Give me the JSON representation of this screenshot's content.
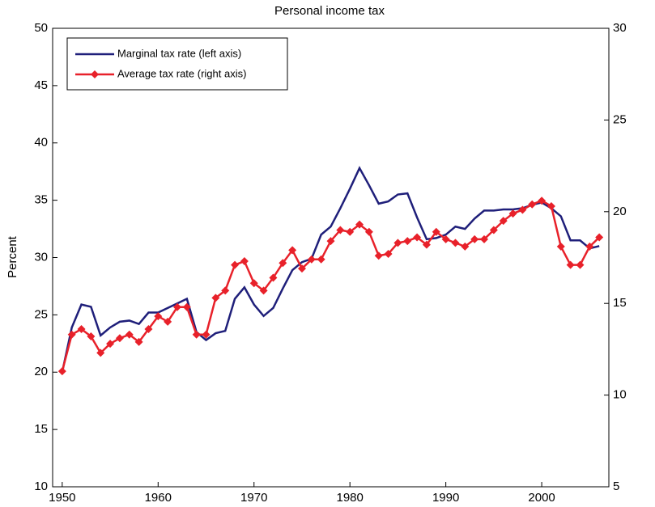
{
  "chart_data": {
    "type": "line",
    "title": "Personal income tax",
    "y_label": "Percent",
    "x": [
      1950,
      1951,
      1952,
      1953,
      1954,
      1955,
      1956,
      1957,
      1958,
      1959,
      1960,
      1961,
      1962,
      1963,
      1964,
      1965,
      1966,
      1967,
      1968,
      1969,
      1970,
      1971,
      1972,
      1973,
      1974,
      1975,
      1976,
      1977,
      1978,
      1979,
      1980,
      1981,
      1982,
      1983,
      1984,
      1985,
      1986,
      1987,
      1988,
      1989,
      1990,
      1991,
      1992,
      1993,
      1994,
      1995,
      1996,
      1997,
      1998,
      1999,
      2000,
      2001,
      2002,
      2003,
      2004,
      2005,
      2006
    ],
    "xlim": [
      1949,
      2007
    ],
    "xticks": [
      1950,
      1960,
      1970,
      1980,
      1990,
      2000
    ],
    "ylim": [
      10,
      50
    ],
    "yticks": [
      10,
      15,
      20,
      25,
      30,
      35,
      40,
      45,
      50
    ],
    "y2lim": [
      5,
      30
    ],
    "y2ticks": [
      5,
      10,
      15,
      20,
      25,
      30
    ],
    "legend": "upper left",
    "series": [
      {
        "name": "Marginal tax rate (left axis)",
        "color": "#1f1f7a",
        "marker": "none",
        "values": [
          20.0,
          23.9,
          25.9,
          25.7,
          23.2,
          23.9,
          24.4,
          24.5,
          24.2,
          25.2,
          25.2,
          25.6,
          26.0,
          26.4,
          23.5,
          22.8,
          23.4,
          23.6,
          26.4,
          27.4,
          25.9,
          24.9,
          25.6,
          27.3,
          28.9,
          29.6,
          29.9,
          32.0,
          32.7,
          34.3,
          36.0,
          37.8,
          36.3,
          34.7,
          34.9,
          35.5,
          35.6,
          33.5,
          31.6,
          31.7,
          32.0,
          32.7,
          32.5,
          33.4,
          34.1,
          34.1,
          34.2,
          34.2,
          34.3,
          34.6,
          34.8,
          34.3,
          33.6,
          31.5,
          31.5,
          30.8,
          31.0
        ]
      },
      {
        "name": "Average tax rate (right axis)",
        "color": "#e8212a",
        "marker": "diamond",
        "axis": "y2",
        "values": [
          11.3,
          13.3,
          13.6,
          13.2,
          12.3,
          12.8,
          13.1,
          13.3,
          12.9,
          13.6,
          14.3,
          14.0,
          14.8,
          14.8,
          13.3,
          13.3,
          15.3,
          15.7,
          17.1,
          17.3,
          16.1,
          15.7,
          16.4,
          17.2,
          17.9,
          16.9,
          17.4,
          17.4,
          18.4,
          19.0,
          18.9,
          19.3,
          18.9,
          17.6,
          17.7,
          18.3,
          18.4,
          18.6,
          18.2,
          18.9,
          18.5,
          18.3,
          18.1,
          18.5,
          18.5,
          19.0,
          19.5,
          19.9,
          20.1,
          20.4,
          20.6,
          20.3,
          18.1,
          17.1,
          17.1,
          18.1,
          18.6
        ]
      }
    ]
  }
}
